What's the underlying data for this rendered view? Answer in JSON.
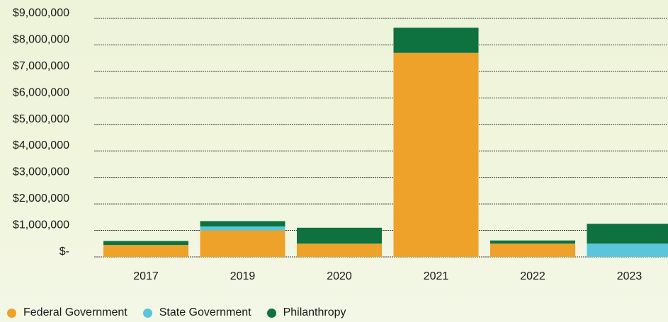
{
  "chart_data": {
    "type": "bar",
    "stacked": true,
    "categories": [
      "2017",
      "2019",
      "2020",
      "2021",
      "2022",
      "2023"
    ],
    "series": [
      {
        "name": "Federal Government",
        "color": "#eea22a",
        "values": [
          450000,
          1000000,
          500000,
          7700000,
          500000,
          0
        ]
      },
      {
        "name": "State Government",
        "color": "#5bc6d9",
        "values": [
          0,
          150000,
          0,
          0,
          0,
          500000
        ]
      },
      {
        "name": "Philanthropy",
        "color": "#0d7140",
        "values": [
          150000,
          200000,
          600000,
          950000,
          120000,
          750000
        ]
      }
    ],
    "yticks": [
      "$9,000,000",
      "$8,000,000",
      "$7,000,000",
      "$6,000,000",
      "$5,000,000",
      "$4,000,000",
      "$3,000,000",
      "$2,000,000",
      "$1,000,000",
      "$-"
    ],
    "ylim": [
      0,
      9000000
    ],
    "grid": true,
    "legend_position": "bottom-left"
  }
}
